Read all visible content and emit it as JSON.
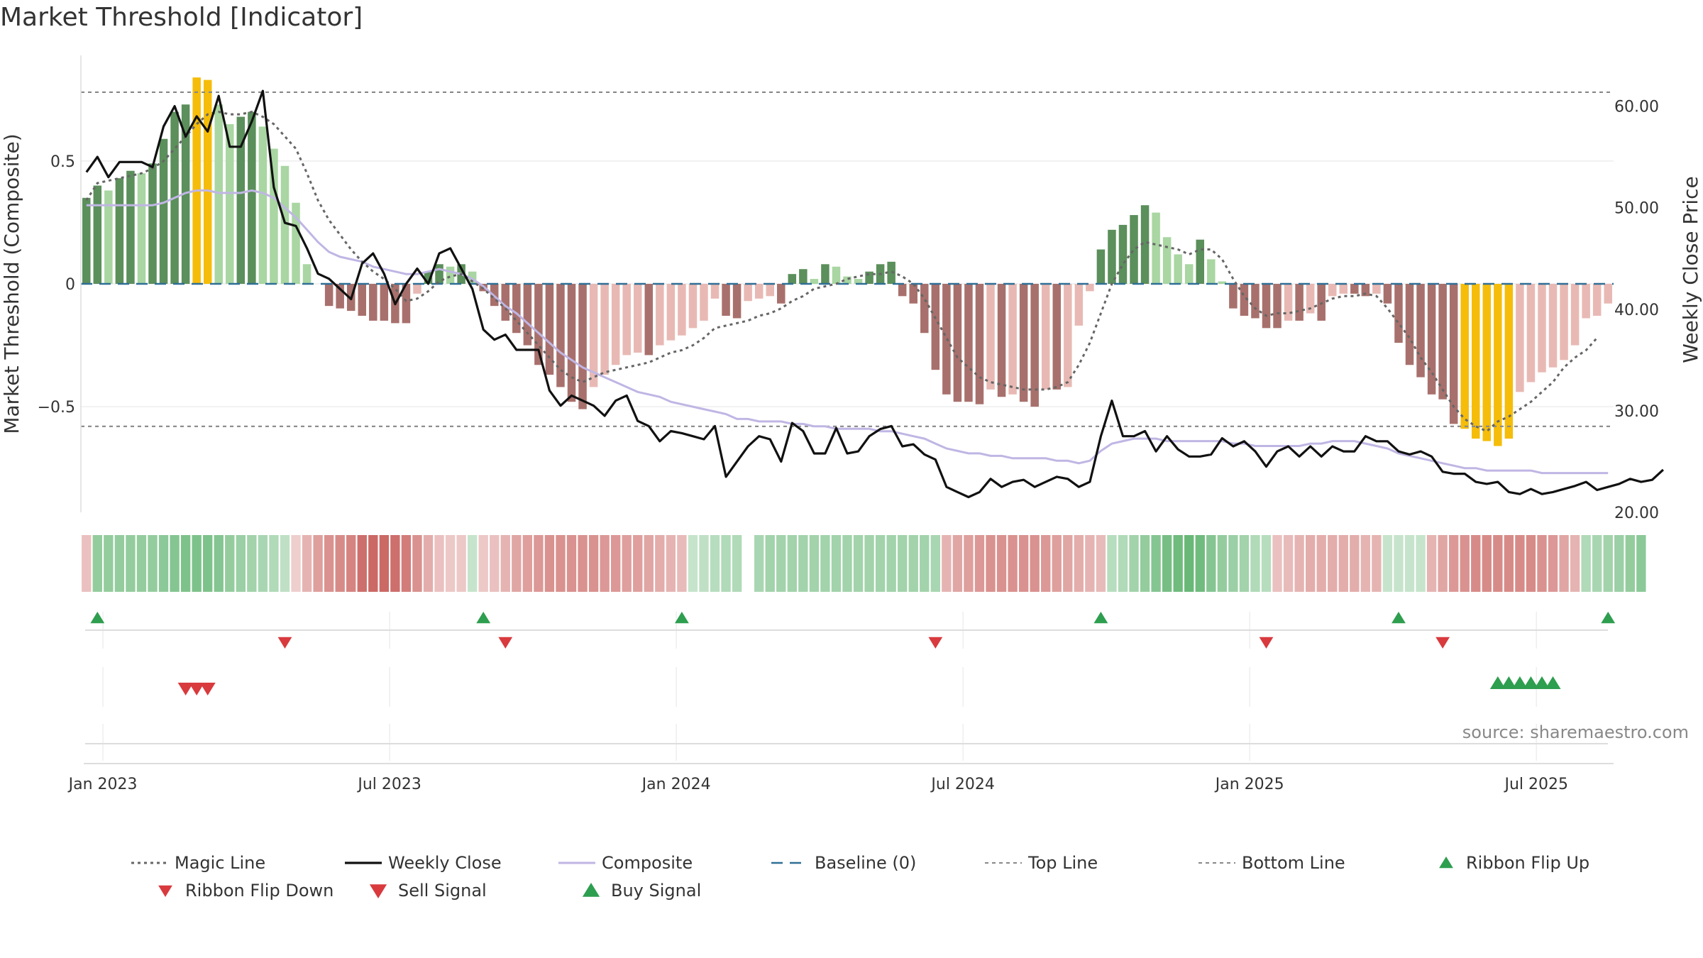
{
  "title": "Market Threshold [Indicator]",
  "source": "source: sharemaestro.com",
  "colors": {
    "dark_green": "#5b8f5b",
    "light_green": "#a9d6a2",
    "dark_red": "#a8706c",
    "light_red": "#e8b9b4",
    "extreme": "#f5bd0a",
    "close": "#111111",
    "composite": "#c0b6e4",
    "magic": "#666666",
    "baseline": "#2f6f96",
    "buy": "#2e9e4f",
    "sell": "#d83a3e"
  },
  "chart_data": {
    "type": "line",
    "ylabel_left": "Market Threshold (Composite)",
    "ylabel_right": "Weekly Close Price",
    "ylim_left": [
      -0.93,
      0.93
    ],
    "ylim_right": [
      20,
      65
    ],
    "left_ticks": [
      "0.5",
      "0",
      "−0.5"
    ],
    "left_tick_values": [
      0.5,
      0,
      -0.5
    ],
    "right_ticks": [
      "60.00",
      "50.00",
      "40.00",
      "30.00",
      "20.00"
    ],
    "right_tick_values": [
      60,
      50,
      40,
      30,
      20
    ],
    "x_tick_labels": [
      "Jan 2023",
      "Jul 2023",
      "Jan 2024",
      "Jul 2024",
      "Jan 2025",
      "Jul 2025"
    ],
    "x_tick_weeks": [
      1.5,
      27.5,
      53.5,
      79.5,
      105.5,
      131.5
    ],
    "top_line": 0.78,
    "bottom_line": -0.58,
    "bar_values": [
      0.35,
      0.4,
      0.38,
      0.43,
      0.46,
      0.45,
      0.49,
      0.59,
      0.7,
      0.73,
      0.84,
      0.83,
      0.73,
      0.65,
      0.68,
      0.7,
      0.64,
      0.55,
      0.48,
      0.33,
      0.08,
      0,
      -0.09,
      -0.1,
      -0.11,
      -0.13,
      -0.15,
      -0.15,
      -0.16,
      -0.16,
      -0.04,
      0.05,
      0.08,
      0.07,
      0.08,
      0.05,
      -0.03,
      -0.09,
      -0.15,
      -0.2,
      -0.25,
      -0.33,
      -0.37,
      -0.42,
      -0.48,
      -0.51,
      -0.42,
      -0.37,
      -0.33,
      -0.29,
      -0.28,
      -0.29,
      -0.25,
      -0.23,
      -0.21,
      -0.18,
      -0.15,
      -0.06,
      -0.13,
      -0.14,
      -0.07,
      -0.06,
      -0.05,
      -0.08,
      0.04,
      0.06,
      0.02,
      0.08,
      0.07,
      0.03,
      0.02,
      0.05,
      0.08,
      0.09,
      -0.05,
      -0.08,
      -0.2,
      -0.35,
      -0.45,
      -0.48,
      -0.48,
      -0.49,
      -0.43,
      -0.46,
      -0.45,
      -0.48,
      -0.5,
      -0.43,
      -0.43,
      -0.42,
      -0.17,
      -0.03,
      0.14,
      0.22,
      0.24,
      0.28,
      0.32,
      0.29,
      0.19,
      0.12,
      0.08,
      0.18,
      0.1,
      0.01,
      -0.1,
      -0.13,
      -0.14,
      -0.18,
      -0.18,
      -0.15,
      -0.15,
      -0.12,
      -0.15,
      -0.05,
      -0.04,
      -0.04,
      -0.05,
      -0.04,
      -0.08,
      -0.24,
      -0.33,
      -0.38,
      -0.45,
      -0.47,
      -0.57,
      -0.59,
      -0.63,
      -0.64,
      -0.66,
      -0.63,
      -0.44,
      -0.4,
      -0.36,
      -0.34,
      -0.31,
      -0.25,
      -0.14,
      -0.13,
      -0.08
    ],
    "magic_line": [
      0.34,
      0.41,
      0.42,
      0.43,
      0.44,
      0.45,
      0.47,
      0.5,
      0.55,
      0.6,
      0.65,
      0.69,
      0.7,
      0.69,
      0.69,
      0.7,
      0.68,
      0.65,
      0.6,
      0.55,
      0.45,
      0.34,
      0.26,
      0.2,
      0.14,
      0.09,
      0.05,
      0.02,
      -0.02,
      -0.07,
      -0.06,
      -0.03,
      0.01,
      0.03,
      0.04,
      0.01,
      -0.02,
      -0.06,
      -0.1,
      -0.15,
      -0.2,
      -0.25,
      -0.3,
      -0.35,
      -0.38,
      -0.4,
      -0.38,
      -0.36,
      -0.35,
      -0.34,
      -0.33,
      -0.32,
      -0.3,
      -0.28,
      -0.27,
      -0.25,
      -0.22,
      -0.18,
      -0.17,
      -0.16,
      -0.15,
      -0.13,
      -0.12,
      -0.1,
      -0.07,
      -0.05,
      -0.02,
      -0.01,
      0,
      0.02,
      0.03,
      0.04,
      0.04,
      0.05,
      0.03,
      0,
      -0.06,
      -0.14,
      -0.22,
      -0.3,
      -0.34,
      -0.38,
      -0.4,
      -0.41,
      -0.42,
      -0.43,
      -0.43,
      -0.43,
      -0.42,
      -0.4,
      -0.33,
      -0.24,
      -0.12,
      0,
      0.08,
      0.14,
      0.17,
      0.16,
      0.15,
      0.14,
      0.12,
      0.14,
      0.14,
      0.1,
      0.02,
      -0.05,
      -0.1,
      -0.13,
      -0.12,
      -0.12,
      -0.11,
      -0.1,
      -0.08,
      -0.06,
      -0.05,
      -0.05,
      -0.04,
      -0.05,
      -0.1,
      -0.16,
      -0.22,
      -0.3,
      -0.36,
      -0.43,
      -0.5,
      -0.55,
      -0.58,
      -0.6,
      -0.56,
      -0.54,
      -0.51,
      -0.48,
      -0.44,
      -0.4,
      -0.34,
      -0.3,
      -0.27,
      -0.22
    ],
    "composite_line": [
      0.32,
      0.32,
      0.32,
      0.32,
      0.32,
      0.32,
      0.32,
      0.33,
      0.35,
      0.37,
      0.38,
      0.38,
      0.37,
      0.37,
      0.37,
      0.38,
      0.37,
      0.35,
      0.31,
      0.27,
      0.22,
      0.17,
      0.13,
      0.11,
      0.1,
      0.09,
      0.07,
      0.06,
      0.05,
      0.04,
      0.04,
      0.05,
      0.06,
      0.05,
      0.04,
      0.02,
      -0.01,
      -0.05,
      -0.09,
      -0.12,
      -0.16,
      -0.2,
      -0.24,
      -0.28,
      -0.31,
      -0.34,
      -0.36,
      -0.38,
      -0.4,
      -0.42,
      -0.44,
      -0.45,
      -0.46,
      -0.48,
      -0.49,
      -0.5,
      -0.51,
      -0.52,
      -0.53,
      -0.55,
      -0.55,
      -0.56,
      -0.56,
      -0.56,
      -0.57,
      -0.57,
      -0.58,
      -0.58,
      -0.59,
      -0.59,
      -0.59,
      -0.59,
      -0.6,
      -0.6,
      -0.61,
      -0.62,
      -0.63,
      -0.65,
      -0.67,
      -0.68,
      -0.69,
      -0.69,
      -0.7,
      -0.7,
      -0.71,
      -0.71,
      -0.71,
      -0.71,
      -0.72,
      -0.72,
      -0.73,
      -0.72,
      -0.68,
      -0.65,
      -0.64,
      -0.63,
      -0.63,
      -0.63,
      -0.64,
      -0.64,
      -0.64,
      -0.64,
      -0.64,
      -0.64,
      -0.65,
      -0.65,
      -0.66,
      -0.66,
      -0.66,
      -0.66,
      -0.66,
      -0.65,
      -0.65,
      -0.64,
      -0.64,
      -0.64,
      -0.65,
      -0.66,
      -0.67,
      -0.69,
      -0.7,
      -0.71,
      -0.72,
      -0.73,
      -0.74,
      -0.75,
      -0.75,
      -0.76,
      -0.76,
      -0.76,
      -0.76,
      -0.76,
      -0.77,
      -0.77,
      -0.77,
      -0.77,
      -0.77,
      -0.77,
      -0.77
    ],
    "weekly_close": [
      53.5,
      55,
      53,
      54.5,
      54.5,
      54.5,
      54,
      58,
      60,
      57,
      59,
      57.5,
      61,
      56,
      56,
      58.5,
      61.5,
      52,
      48.5,
      48.2,
      46,
      43.5,
      43,
      42,
      41,
      44.5,
      45.5,
      43.5,
      40.5,
      42.5,
      44,
      42.5,
      45.5,
      46,
      44,
      42,
      38,
      37,
      37.5,
      36,
      36,
      36,
      32,
      30.5,
      31.5,
      31,
      30.5,
      29.5,
      31,
      31.5,
      29,
      28.5,
      27,
      28,
      27.8,
      27.5,
      27.2,
      28.5,
      23.5,
      25,
      26.5,
      27.5,
      27.2,
      25,
      28.8,
      28,
      25.8,
      25.8,
      28.3,
      25.8,
      26,
      27.5,
      28.2,
      28.5,
      26.5,
      26.7,
      25.7,
      25.2,
      22.5,
      22,
      21.5,
      22,
      23.3,
      22.5,
      23,
      23.2,
      22.5,
      23,
      23.5,
      23.3,
      22.5,
      23,
      27.5,
      31,
      27.5,
      27.5,
      28,
      26,
      27.5,
      26.2,
      25.5,
      25.5,
      25.7,
      27.3,
      26.5,
      27,
      26,
      24.5,
      26,
      26.5,
      25.5,
      26.5,
      25.5,
      26.5,
      26,
      26,
      27.5,
      27,
      27,
      26,
      25.7,
      26,
      25.5,
      24,
      23.8,
      23.8,
      23,
      22.8,
      23,
      22,
      21.8,
      22.3,
      21.8,
      22,
      22.3,
      22.6,
      23,
      22.2,
      22.5,
      22.8,
      23.3,
      23,
      23.2,
      24.2
    ],
    "ribbon_scores": [
      -0.2,
      0.5,
      0.5,
      0.5,
      0.5,
      0.5,
      0.5,
      0.55,
      0.6,
      0.65,
      0.65,
      0.65,
      0.6,
      0.5,
      0.45,
      0.4,
      0.35,
      0.3,
      0.2,
      -0.1,
      -0.3,
      -0.45,
      -0.55,
      -0.6,
      -0.65,
      -0.8,
      -0.85,
      -0.85,
      -0.8,
      -0.7,
      -0.55,
      -0.35,
      -0.2,
      -0.15,
      -0.15,
      0.15,
      -0.15,
      -0.2,
      -0.3,
      -0.4,
      -0.45,
      -0.5,
      -0.55,
      -0.55,
      -0.55,
      -0.55,
      -0.55,
      -0.5,
      -0.5,
      -0.45,
      -0.45,
      -0.4,
      -0.35,
      -0.3,
      -0.25,
      0.15,
      0.2,
      0.25,
      0.3,
      0.3,
      null,
      0.35,
      0.4,
      0.4,
      0.4,
      0.4,
      0.4,
      0.4,
      0.4,
      0.4,
      0.4,
      0.4,
      0.4,
      0.4,
      0.4,
      0.4,
      0.4,
      0.35,
      -0.3,
      -0.4,
      -0.45,
      -0.5,
      -0.55,
      -0.55,
      -0.55,
      -0.55,
      -0.55,
      -0.5,
      -0.45,
      -0.4,
      -0.35,
      -0.3,
      -0.25,
      0.25,
      0.3,
      0.4,
      0.5,
      0.6,
      0.7,
      0.75,
      0.8,
      0.75,
      0.6,
      0.5,
      0.45,
      0.4,
      0.3,
      0.25,
      -0.2,
      -0.25,
      -0.3,
      -0.35,
      -0.35,
      -0.35,
      -0.35,
      -0.35,
      -0.3,
      -0.3,
      0.15,
      0.15,
      0.15,
      0.15,
      -0.3,
      -0.4,
      -0.5,
      -0.55,
      -0.6,
      -0.6,
      -0.6,
      -0.6,
      -0.6,
      -0.6,
      -0.55,
      -0.5,
      -0.4,
      -0.3,
      0.3,
      0.35,
      0.4,
      0.45,
      0.5,
      0.55
    ],
    "ribbon_flip_up_weeks": [
      1,
      36,
      54,
      92,
      119,
      138
    ],
    "ribbon_flip_down_weeks": [
      18,
      38,
      77,
      107,
      123
    ],
    "sell_signal_weeks": [
      9,
      10,
      11
    ],
    "buy_signal_weeks": [
      128,
      129,
      130,
      131,
      132,
      133
    ],
    "legend": [
      "Magic Line",
      "Weekly Close",
      "Composite",
      "Baseline (0)",
      "Top Line",
      "Bottom Line",
      "Ribbon Flip Up",
      "Ribbon Flip Down",
      "Sell Signal",
      "Buy Signal"
    ]
  }
}
